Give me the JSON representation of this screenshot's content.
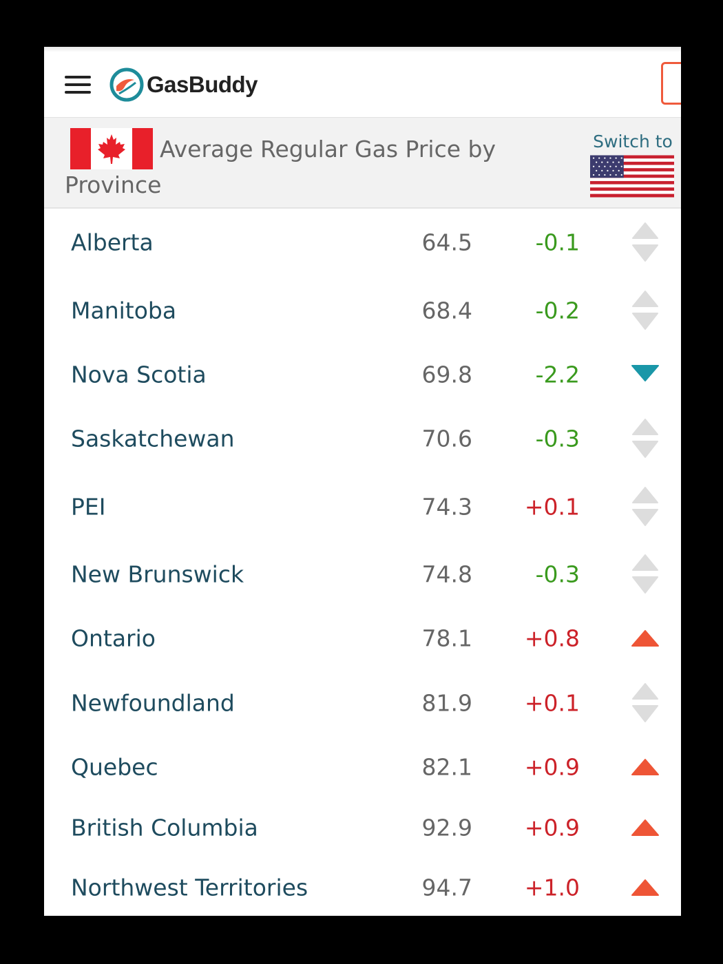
{
  "app": {
    "logo_text": "GasBuddy",
    "accent_color": "#ef5a3c"
  },
  "header": {
    "title": "Average Regular Gas Price by Province",
    "switch_label": "Switch to"
  },
  "colors": {
    "province_text": "#1e4b5e",
    "price_text": "#666666",
    "decrease": "#3a9a1e",
    "increase": "#cc2229",
    "arrow_up": "#ee5536",
    "arrow_down": "#1a97a8",
    "arrow_neutral": "#dddddd"
  },
  "provinces": [
    {
      "name": "Alberta",
      "price": "64.5",
      "change": "-0.1",
      "trend": "neutral"
    },
    {
      "name": "Manitoba",
      "price": "68.4",
      "change": "-0.2",
      "trend": "neutral"
    },
    {
      "name": "Nova Scotia",
      "price": "69.8",
      "change": "-2.2",
      "trend": "down"
    },
    {
      "name": "Saskatchewan",
      "price": "70.6",
      "change": "-0.3",
      "trend": "neutral"
    },
    {
      "name": "PEI",
      "price": "74.3",
      "change": "+0.1",
      "trend": "neutral"
    },
    {
      "name": "New Brunswick",
      "price": "74.8",
      "change": "-0.3",
      "trend": "neutral"
    },
    {
      "name": "Ontario",
      "price": "78.1",
      "change": "+0.8",
      "trend": "up"
    },
    {
      "name": "Newfoundland",
      "price": "81.9",
      "change": "+0.1",
      "trend": "neutral"
    },
    {
      "name": "Quebec",
      "price": "82.1",
      "change": "+0.9",
      "trend": "up"
    },
    {
      "name": "British Columbia",
      "price": "92.9",
      "change": "+0.9",
      "trend": "up"
    },
    {
      "name": "Northwest Territories",
      "price": "94.7",
      "change": "+1.0",
      "trend": "up"
    }
  ]
}
